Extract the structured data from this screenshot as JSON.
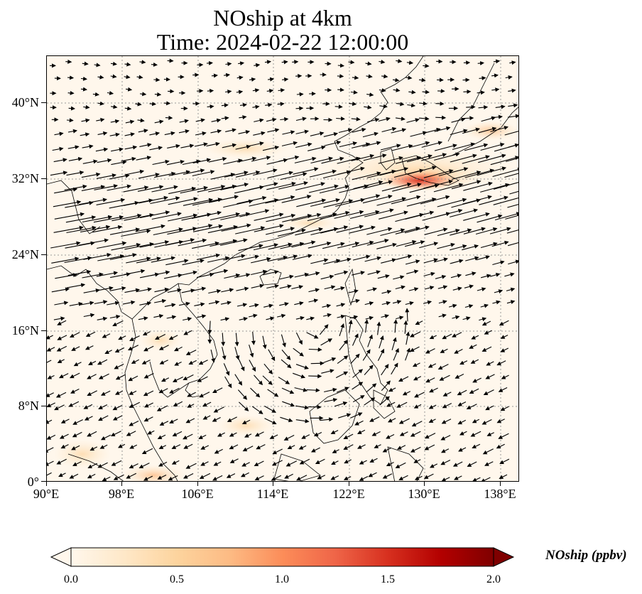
{
  "title": {
    "line1": "NOship at 4km",
    "line2": "Time: 2024-02-22 12:00:00"
  },
  "map": {
    "lon_range": [
      90,
      140
    ],
    "lat_range": [
      0,
      45
    ],
    "gridlines": "dotted",
    "colormap": "OrRd",
    "background_color": "#fff7ec",
    "coastline_color": "#000000",
    "vector_color": "#000000",
    "lat_ticks": [
      {
        "value": 0,
        "label": "0°"
      },
      {
        "value": 8,
        "label": "8°N"
      },
      {
        "value": 16,
        "label": "16°N"
      },
      {
        "value": 24,
        "label": "24°N"
      },
      {
        "value": 32,
        "label": "32°N"
      },
      {
        "value": 40,
        "label": "40°N"
      }
    ],
    "lon_ticks": [
      {
        "value": 90,
        "label": "90°E"
      },
      {
        "value": 98,
        "label": "98°E"
      },
      {
        "value": 106,
        "label": "106°E"
      },
      {
        "value": 114,
        "label": "114°E"
      },
      {
        "value": 122,
        "label": "122°E"
      },
      {
        "value": 130,
        "label": "130°E"
      },
      {
        "value": 138,
        "label": "138°E"
      }
    ]
  },
  "colorbar": {
    "label": "NOship (ppbv)",
    "min": 0.0,
    "max": 2.0,
    "extend": "both",
    "ticks": [
      {
        "value": 0.0,
        "label": "0.0"
      },
      {
        "value": 0.5,
        "label": "0.5"
      },
      {
        "value": 1.0,
        "label": "1.0"
      },
      {
        "value": 1.5,
        "label": "1.5"
      },
      {
        "value": 2.0,
        "label": "2.0"
      }
    ],
    "colors": [
      "#fff7ec",
      "#fee8c8",
      "#fdd49e",
      "#fdbb84",
      "#fc8d59",
      "#ef6548",
      "#d7301f",
      "#b30000",
      "#7f0000"
    ]
  }
}
